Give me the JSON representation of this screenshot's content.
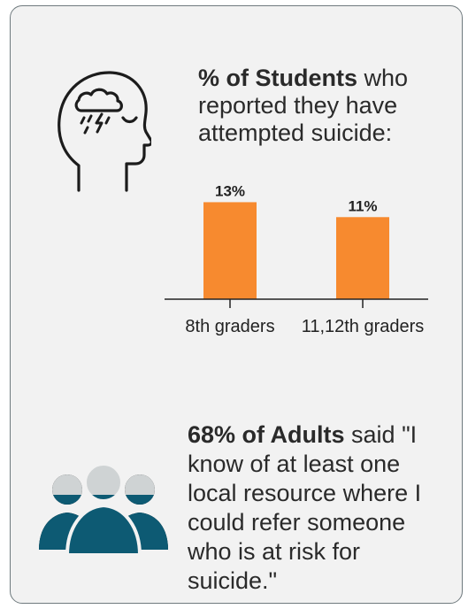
{
  "stat1": {
    "title_bold": "% of Students",
    "title_rest": " who reported they have attempted suicide:"
  },
  "chart_data": {
    "type": "bar",
    "categories": [
      "8th graders",
      "11,12th graders"
    ],
    "values": [
      13,
      11
    ],
    "value_labels": [
      "13%",
      "11%"
    ],
    "ylim": [
      0,
      14
    ],
    "bar_color": "#f78a2f"
  },
  "stat2": {
    "bold": "68% of Adults",
    "rest": " said \"I know of at least one local resource where I could refer someone who is at risk for suicide.\""
  },
  "icons": {
    "head": "head-storm-cloud-icon",
    "people": "people-group-icon"
  },
  "colors": {
    "accent_orange": "#f78a2f",
    "people_teal": "#0d5a73",
    "people_grey": "#cfd3d4",
    "card_bg": "#f2f2f2"
  }
}
